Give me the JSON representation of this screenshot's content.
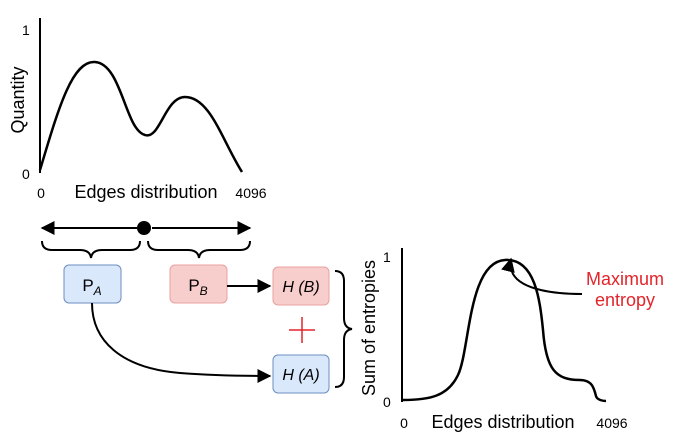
{
  "top_plot": {
    "y_tick_top": "1",
    "y_tick_bottom": "0",
    "y_label": "Quantity",
    "x_tick_left": "0",
    "x_tick_right": "4096",
    "x_label": "Edges distribution"
  },
  "nodes": {
    "pa_base": "P",
    "pa_sub": "A",
    "pb_base": "P",
    "pb_sub": "B",
    "hb": "H (B)",
    "ha": "H (A)",
    "plus": "+"
  },
  "bottom_plot": {
    "y_label": "Sum of entropies",
    "y_tick_top": "1",
    "y_tick_bottom": "0",
    "x_tick_left": "0",
    "x_tick_right": "4096",
    "x_label": "Edges distribution",
    "annotation_line1": "Maximum",
    "annotation_line2": "entropy"
  },
  "colors": {
    "pa_fill": "#dae8fc",
    "pa_stroke": "#6c8ebf",
    "pb_fill": "#f8cecc",
    "pb_stroke": "#e8a29f",
    "accent_red": "#e3242b"
  }
}
